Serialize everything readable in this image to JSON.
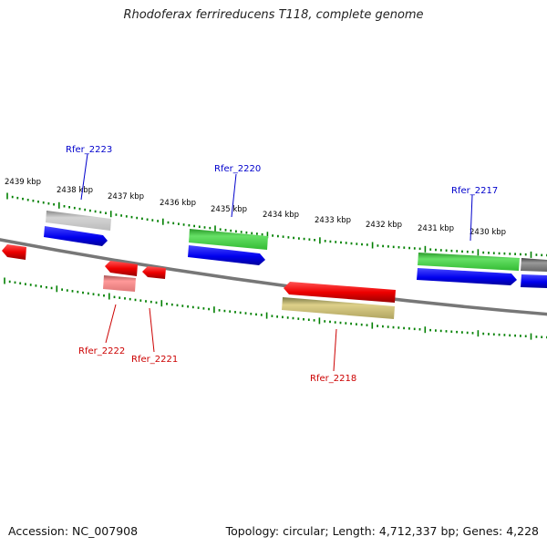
{
  "title": "Rhodoferax ferrireducens T118, complete genome",
  "footer": {
    "accession": "Accession: NC_007908",
    "topology": "Topology: circular; Length: 4,712,337 bp; Genes: 4,228"
  },
  "colors": {
    "backbone": "#808080",
    "tick": "#008000",
    "forward_label": "#0000cc",
    "reverse_label": "#cc0000"
  },
  "scale_labels": [
    "2439 kbp",
    "2438 kbp",
    "2437 kbp",
    "2436 kbp",
    "2435 kbp",
    "2434 kbp",
    "2433 kbp",
    "2432 kbp",
    "2431 kbp",
    "2430 kbp"
  ],
  "gene_labels": {
    "forward": [
      "Rfer_2223",
      "Rfer_2220",
      "Rfer_2217"
    ],
    "reverse": [
      "Rfer_2222",
      "Rfer_2221",
      "Rfer_2218"
    ]
  }
}
